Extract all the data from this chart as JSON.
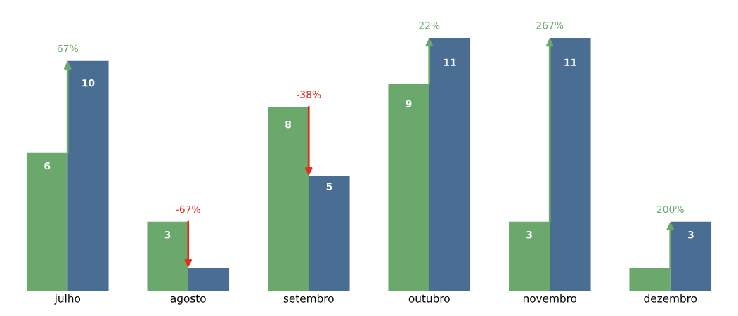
{
  "chart_data": {
    "type": "bar",
    "categories": [
      "julho",
      "agosto",
      "setembro",
      "outubro",
      "novembro",
      "dezembro"
    ],
    "series": [
      {
        "color": "#6aa86c",
        "values": [
          6,
          3,
          8,
          9,
          3,
          1
        ],
        "value_labels": [
          "6",
          "3",
          "8",
          "9",
          "3",
          null
        ]
      },
      {
        "color": "#4a6d93",
        "values": [
          10,
          1,
          5,
          11,
          11,
          3
        ],
        "value_labels": [
          "10",
          null,
          "5",
          "11",
          "11",
          "3"
        ]
      }
    ],
    "annotations": [
      {
        "text": "67%",
        "x": "julho",
        "y": 10
      },
      {
        "text": "-67%",
        "x": "agosto",
        "y": 3
      },
      {
        "text": "-38%",
        "x": "setembro",
        "y": 8
      },
      {
        "text": "22%",
        "x": "outubro",
        "y": 11
      },
      {
        "text": "267%",
        "x": "novembro",
        "y": 11
      },
      {
        "text": "200%",
        "x": "dezembro",
        "y": 3
      }
    ]
  }
}
